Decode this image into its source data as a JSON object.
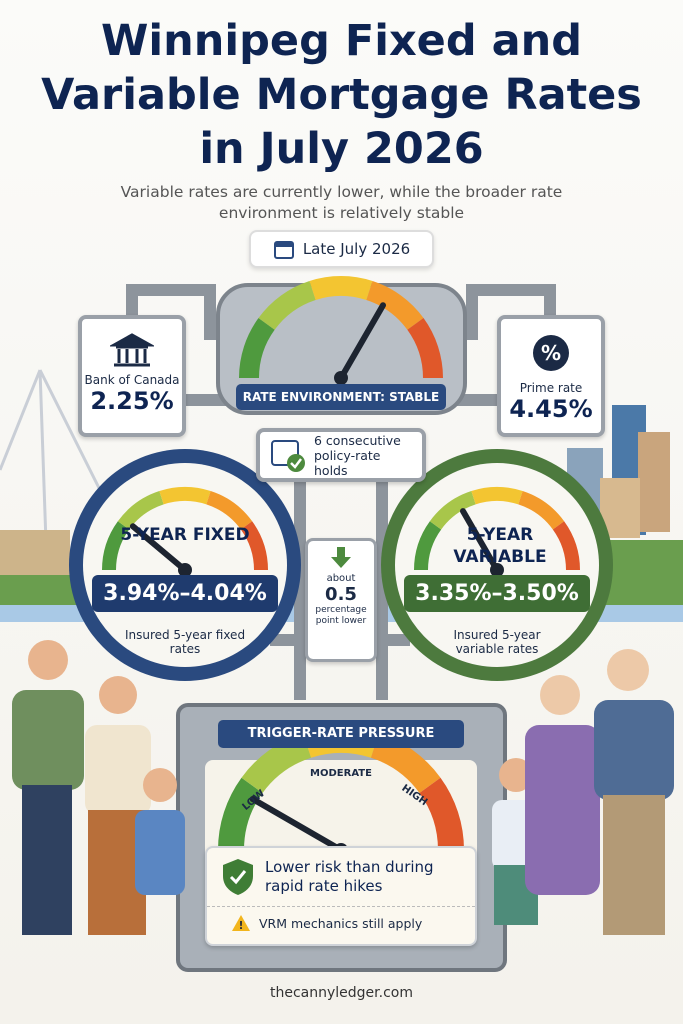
{
  "header": {
    "title": "Winnipeg Fixed and Variable Mortgage Rates in July 2026",
    "subtitle": "Variable rates are currently lower, while the broader rate environment is relatively stable",
    "date": "Late July 2026"
  },
  "bank_of_canada": {
    "label": "Bank of Canada",
    "value": "2.25%"
  },
  "prime_rate": {
    "label": "Prime rate",
    "value": "4.45%"
  },
  "environment": {
    "label": "RATE ENVIRONMENT: STABLE",
    "holds": "6 consecutive policy-rate holds"
  },
  "fixed": {
    "title": "5-YEAR FIXED",
    "range": "3.94%–4.04%",
    "note": "Insured 5-year fixed rates"
  },
  "variable": {
    "title": "5-YEAR VARIABLE",
    "range": "3.35%–3.50%",
    "note": "Insured 5-year variable rates"
  },
  "spread": {
    "prefix": "about",
    "value": "0.5",
    "suffix": "percentage point lower"
  },
  "trigger": {
    "title": "TRIGGER-RATE PRESSURE",
    "low": "LOW",
    "moderate": "MODERATE",
    "high": "HIGH",
    "message": "Lower risk than during rapid rate hikes",
    "warning": "VRM mechanics still apply"
  },
  "footer": {
    "site": "thecannyledger.com"
  }
}
